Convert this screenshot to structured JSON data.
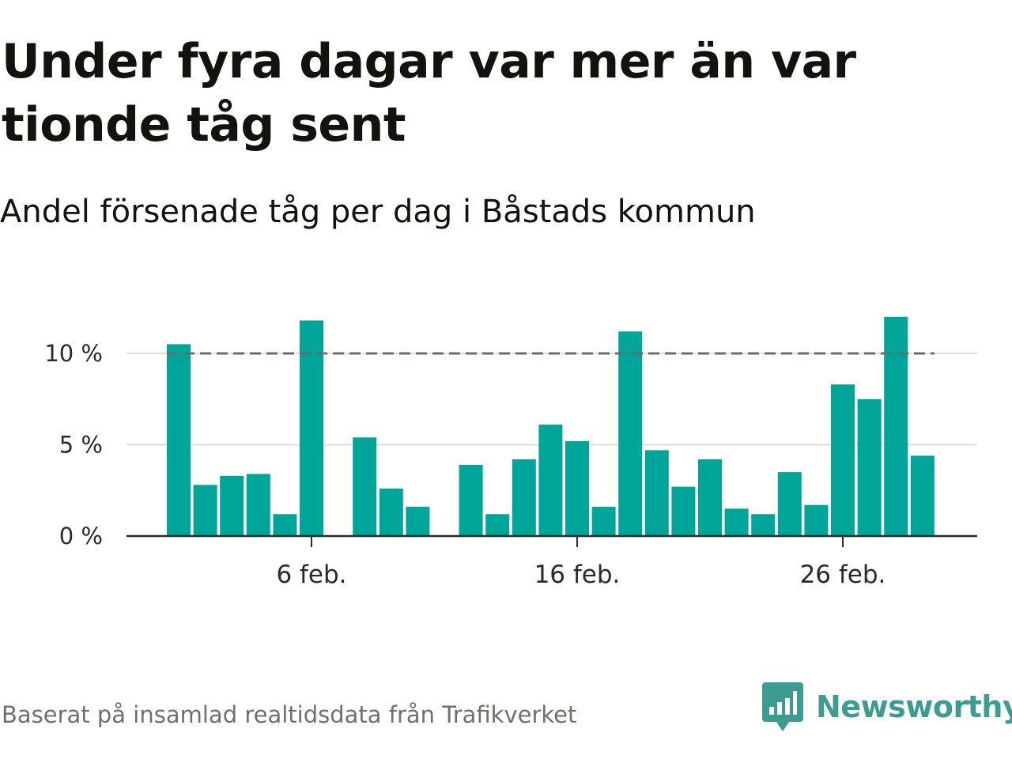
{
  "title": "Under fyra dagar var mer än var tionde tåg sent",
  "subtitle": "Andel försenade tåg per dag i Båstads kommun",
  "source": "Baserat på insamlad realtidsdata från Trafikverket",
  "logo": {
    "text": "Newsworthy",
    "icon": "newsworthy-logo-icon",
    "color": "#3d9c90"
  },
  "chart_data": {
    "type": "bar",
    "title": "Under fyra dagar var mer än var tionde tåg sent",
    "subtitle": "Andel försenade tåg per dag i Båstads kommun",
    "xlabel": "",
    "ylabel": "",
    "bar_color": "#00a599",
    "reference_line": {
      "value": 10,
      "style": "dashed",
      "color": "#6d6d6a"
    },
    "ylim": [
      0,
      12.5
    ],
    "grid": true,
    "y_ticks": [
      {
        "value": 0,
        "label": "0 %"
      },
      {
        "value": 5,
        "label": "5 %"
      },
      {
        "value": 10,
        "label": "10 %"
      }
    ],
    "x_ticks": [
      {
        "date": "2024-02-06",
        "label": "6 feb."
      },
      {
        "date": "2024-02-16",
        "label": "16 feb."
      },
      {
        "date": "2024-02-26",
        "label": "26 feb."
      }
    ],
    "categories": [
      "2024-02-01",
      "2024-02-02",
      "2024-02-03",
      "2024-02-04",
      "2024-02-05",
      "2024-02-06",
      "2024-02-07",
      "2024-02-08",
      "2024-02-09",
      "2024-02-10",
      "2024-02-11",
      "2024-02-12",
      "2024-02-13",
      "2024-02-14",
      "2024-02-15",
      "2024-02-16",
      "2024-02-17",
      "2024-02-18",
      "2024-02-19",
      "2024-02-20",
      "2024-02-21",
      "2024-02-22",
      "2024-02-23",
      "2024-02-24",
      "2024-02-25",
      "2024-02-26",
      "2024-02-27",
      "2024-02-28",
      "2024-02-29"
    ],
    "values": [
      10.5,
      2.8,
      3.3,
      3.4,
      1.2,
      11.8,
      0,
      5.4,
      2.6,
      1.6,
      0,
      3.9,
      1.2,
      4.2,
      6.1,
      5.2,
      1.6,
      11.2,
      4.7,
      2.7,
      4.2,
      1.5,
      1.2,
      3.5,
      1.7,
      8.3,
      7.5,
      12.0,
      4.4
    ],
    "unit": "%"
  }
}
